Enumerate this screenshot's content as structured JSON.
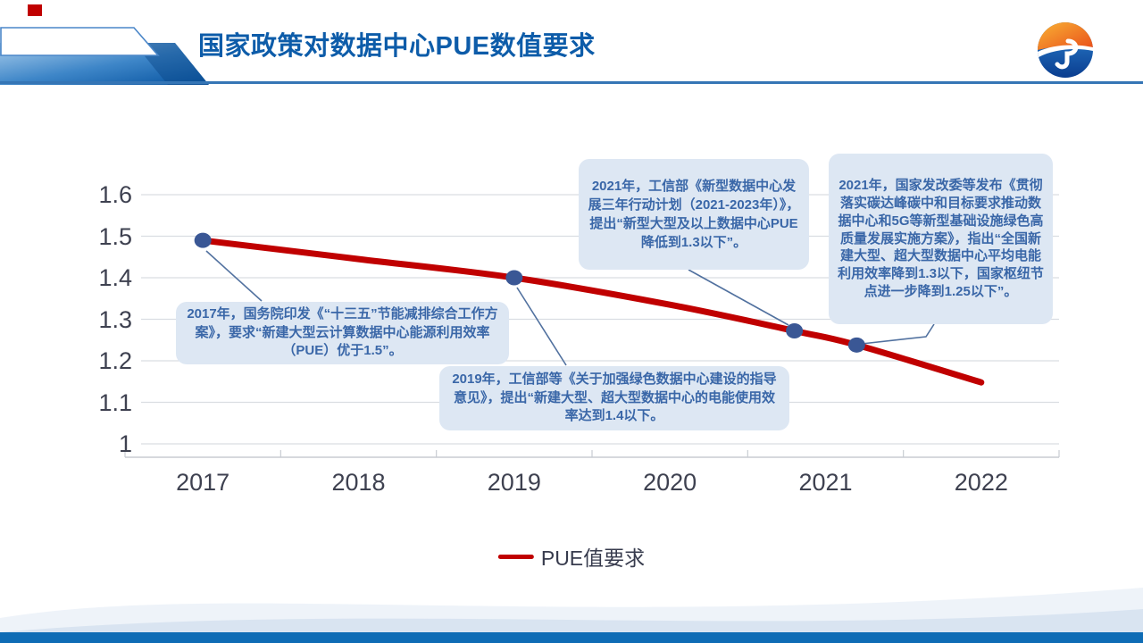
{
  "slide_title": "国家政策对数据中心PUE数值要求",
  "logo": {
    "icon": "jp-globe-logo"
  },
  "colors": {
    "title_blue": "#0D5CA9",
    "line_red": "#C00000",
    "marker_blue": "#3A5795",
    "callout_bg": "#DDE7F3",
    "callout_text": "#3A67A8",
    "bottom_bar_blue": "#0F6CB5",
    "gridline_gray": "#DADDE2"
  },
  "chart_data": {
    "type": "line",
    "title": "国家政策对数据中心PUE数值要求",
    "xlabel": "",
    "ylabel": "",
    "x_ticks": [
      "2017",
      "2018",
      "2019",
      "2020",
      "2021",
      "2022"
    ],
    "y_ticks": [
      "1.6",
      "1.5",
      "1.4",
      "1.3",
      "1.2",
      "1.1",
      "1"
    ],
    "xlim": [
      2016.5,
      2022.5
    ],
    "ylim": [
      1.0,
      1.6
    ],
    "grid": true,
    "legend_position": "bottom-center",
    "series": [
      {
        "name": "PUE值要求",
        "color": "#C00000",
        "points": [
          [
            2017,
            1.49
          ],
          [
            2018,
            1.445
          ],
          [
            2019,
            1.4
          ],
          [
            2020,
            1.335
          ],
          [
            2020.8,
            1.272
          ],
          [
            2021.2,
            1.238
          ],
          [
            2022,
            1.148
          ]
        ]
      }
    ],
    "markers": {
      "color": "#3A5795",
      "points": [
        [
          2017,
          1.49
        ],
        [
          2019,
          1.4
        ],
        [
          2020.8,
          1.272
        ],
        [
          2021.2,
          1.238
        ]
      ]
    },
    "annotations": [
      {
        "text": "2017年，国务院印发《“十三五”节能减排综合工作方案》，要求“新建大型云计算数据中心能源利用效率（PUE）优于1.5”。"
      },
      {
        "text": "2019年，工信部等《关于加强绿色数据中心建设的指导意见》，提出“新建大型、超大型数据中心的电能使用效率达到1.4以下。"
      },
      {
        "text": "2021年，工信部《新型数据中心发展三年行动计划（2021-2023年）》，提出“新型大型及以上数据中心PUE降低到1.3以下”。"
      },
      {
        "text": "2021年，国家发改委等发布《贯彻落实碳达峰碳中和目标要求推动数据中心和5G等新型基础设施绿色高质量发展实施方案》，指出“全国新建大型、超大型数据中心平均电能利用效率降到1.3以下，国家枢纽节点进一步降到1.25以下”。"
      }
    ]
  }
}
